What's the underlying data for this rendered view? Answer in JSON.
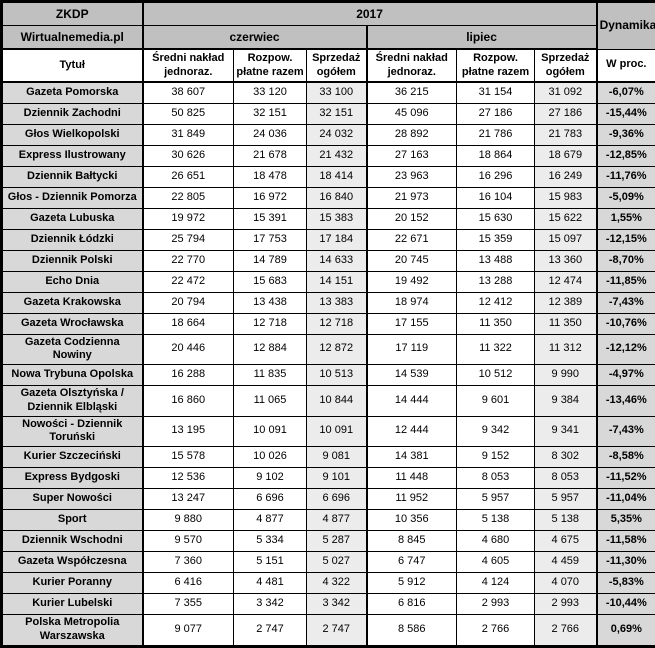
{
  "colors": {
    "header_bg": "#c0c0c0",
    "title_col_bg": "#d8d8d8",
    "sales_col_bg": "#ececec",
    "dynamics_col_bg": "#d8d8d8",
    "border": "#000000",
    "cell_bg": "#ffffff"
  },
  "chart_data": {
    "type": "table",
    "header": {
      "org": "ZKDP",
      "source": "Wirtualnemedia.pl",
      "year": "2017",
      "month_june": "czerwiec",
      "month_july": "lipiec",
      "dynamics": "Dynamika",
      "dynamics_unit": "W proc.",
      "title_col": "Tytuł",
      "subcols": [
        "Średni nakład jednoraz.",
        "Rozpow. płatne razem",
        "Sprzedaż ogółem"
      ]
    },
    "rows": [
      {
        "title": "Gazeta Pomorska",
        "june": [
          "38 607",
          "33 120",
          "33 100"
        ],
        "july": [
          "36 215",
          "31 154",
          "31 092"
        ],
        "dynamics": "-6,07%"
      },
      {
        "title": "Dziennik Zachodni",
        "june": [
          "50 825",
          "32 151",
          "32 151"
        ],
        "july": [
          "45 096",
          "27 186",
          "27 186"
        ],
        "dynamics": "-15,44%"
      },
      {
        "title": "Głos Wielkopolski",
        "june": [
          "31 849",
          "24 036",
          "24 032"
        ],
        "july": [
          "28 892",
          "21 786",
          "21 783"
        ],
        "dynamics": "-9,36%"
      },
      {
        "title": "Express Ilustrowany",
        "june": [
          "30 626",
          "21 678",
          "21 432"
        ],
        "july": [
          "27 163",
          "18 864",
          "18 679"
        ],
        "dynamics": "-12,85%"
      },
      {
        "title": "Dziennik Bałtycki",
        "june": [
          "26 651",
          "18 478",
          "18 414"
        ],
        "july": [
          "23 963",
          "16 296",
          "16 249"
        ],
        "dynamics": "-11,76%"
      },
      {
        "title": "Głos - Dziennik Pomorza",
        "june": [
          "22 805",
          "16 972",
          "16 840"
        ],
        "july": [
          "21 973",
          "16 104",
          "15 983"
        ],
        "dynamics": "-5,09%"
      },
      {
        "title": "Gazeta Lubuska",
        "june": [
          "19 972",
          "15 391",
          "15 383"
        ],
        "july": [
          "20 152",
          "15 630",
          "15 622"
        ],
        "dynamics": "1,55%"
      },
      {
        "title": "Dziennik Łódzki",
        "june": [
          "25 794",
          "17 753",
          "17 184"
        ],
        "july": [
          "22 671",
          "15 359",
          "15 097"
        ],
        "dynamics": "-12,15%"
      },
      {
        "title": "Dziennik Polski",
        "june": [
          "22 770",
          "14 789",
          "14 633"
        ],
        "july": [
          "20 745",
          "13 488",
          "13 360"
        ],
        "dynamics": "-8,70%"
      },
      {
        "title": "Echo Dnia",
        "june": [
          "22 472",
          "15 683",
          "14 151"
        ],
        "july": [
          "19 492",
          "13 288",
          "12 474"
        ],
        "dynamics": "-11,85%"
      },
      {
        "title": "Gazeta Krakowska",
        "june": [
          "20 794",
          "13 438",
          "13 383"
        ],
        "july": [
          "18 974",
          "12 412",
          "12 389"
        ],
        "dynamics": "-7,43%"
      },
      {
        "title": "Gazeta Wrocławska",
        "june": [
          "18 664",
          "12 718",
          "12 718"
        ],
        "july": [
          "17 155",
          "11 350",
          "11 350"
        ],
        "dynamics": "-10,76%"
      },
      {
        "title": "Gazeta Codzienna Nowiny",
        "june": [
          "20 446",
          "12 884",
          "12 872"
        ],
        "july": [
          "17 119",
          "11 322",
          "11 312"
        ],
        "dynamics": "-12,12%"
      },
      {
        "title": "Nowa Trybuna Opolska",
        "june": [
          "16 288",
          "11 835",
          "10 513"
        ],
        "july": [
          "14 539",
          "10 512",
          "9 990"
        ],
        "dynamics": "-4,97%"
      },
      {
        "title": "Gazeta Olsztyńska / Dziennik Elbląski",
        "june": [
          "16 860",
          "11 065",
          "10 844"
        ],
        "july": [
          "14 444",
          "9 601",
          "9 384"
        ],
        "dynamics": "-13,46%"
      },
      {
        "title": "Nowości - Dziennik Toruński",
        "june": [
          "13 195",
          "10 091",
          "10 091"
        ],
        "july": [
          "12 444",
          "9 342",
          "9 341"
        ],
        "dynamics": "-7,43%"
      },
      {
        "title": "Kurier Szczeciński",
        "june": [
          "15 578",
          "10 026",
          "9 081"
        ],
        "july": [
          "14 381",
          "9 152",
          "8 302"
        ],
        "dynamics": "-8,58%"
      },
      {
        "title": "Express Bydgoski",
        "june": [
          "12 536",
          "9 102",
          "9 101"
        ],
        "july": [
          "11 448",
          "8 053",
          "8 053"
        ],
        "dynamics": "-11,52%"
      },
      {
        "title": "Super Nowości",
        "june": [
          "13 247",
          "6 696",
          "6 696"
        ],
        "july": [
          "11 952",
          "5 957",
          "5 957"
        ],
        "dynamics": "-11,04%"
      },
      {
        "title": "Sport",
        "june": [
          "9 880",
          "4 877",
          "4 877"
        ],
        "july": [
          "10 356",
          "5 138",
          "5 138"
        ],
        "dynamics": "5,35%"
      },
      {
        "title": "Dziennik Wschodni",
        "june": [
          "9 570",
          "5 334",
          "5 287"
        ],
        "july": [
          "8 845",
          "4 680",
          "4 675"
        ],
        "dynamics": "-11,58%"
      },
      {
        "title": "Gazeta Współczesna",
        "june": [
          "7 360",
          "5 151",
          "5 027"
        ],
        "july": [
          "6 747",
          "4 605",
          "4 459"
        ],
        "dynamics": "-11,30%"
      },
      {
        "title": "Kurier Poranny",
        "june": [
          "6 416",
          "4 481",
          "4 322"
        ],
        "july": [
          "5 912",
          "4 124",
          "4 070"
        ],
        "dynamics": "-5,83%"
      },
      {
        "title": "Kurier Lubelski",
        "june": [
          "7 355",
          "3 342",
          "3 342"
        ],
        "july": [
          "6 816",
          "2 993",
          "2 993"
        ],
        "dynamics": "-10,44%"
      },
      {
        "title": "Polska Metropolia Warszawska",
        "june": [
          "9 077",
          "2 747",
          "2 747"
        ],
        "july": [
          "8 586",
          "2 766",
          "2 766"
        ],
        "dynamics": "0,69%"
      }
    ]
  }
}
